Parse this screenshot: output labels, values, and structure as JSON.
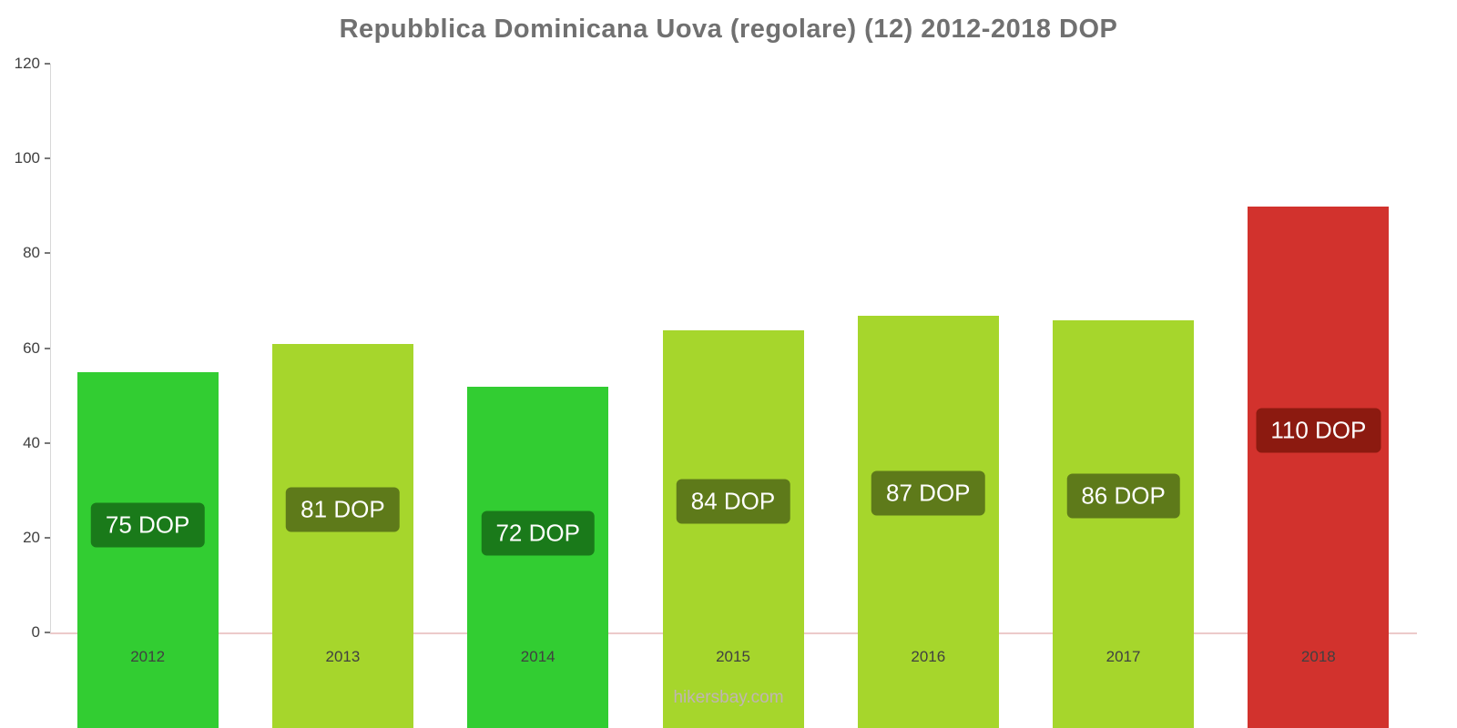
{
  "title": "Repubblica Dominicana Uova (regolare) (12) 2012-2018 DOP",
  "footer": "hikersbay.com",
  "chart_data": {
    "type": "bar",
    "title": "Repubblica Dominicana Uova (regolare) (12) 2012-2018 DOP",
    "categories": [
      "2012",
      "2013",
      "2014",
      "2015",
      "2016",
      "2017",
      "2018"
    ],
    "values": [
      75,
      81,
      72,
      84,
      87,
      86,
      110
    ],
    "data_labels": [
      "75 DOP",
      "81 DOP",
      "72 DOP",
      "84 DOP",
      "87 DOP",
      "86 DOP",
      "110 DOP"
    ],
    "bar_colors": [
      "#32cd32",
      "#a6d62c",
      "#32cd32",
      "#a6d62c",
      "#a6d62c",
      "#a6d62c",
      "#d2322d"
    ],
    "label_bg_colors": [
      "#1a7a1a",
      "#5e7a1a",
      "#1a7a1a",
      "#5e7a1a",
      "#5e7a1a",
      "#5e7a1a",
      "#8c1a10"
    ],
    "xlabel": "",
    "ylabel": "",
    "ylim": [
      0,
      120
    ],
    "yticks": [
      0,
      20,
      40,
      60,
      80,
      100,
      120
    ],
    "grid": false,
    "legend": false,
    "currency": "DOP"
  }
}
